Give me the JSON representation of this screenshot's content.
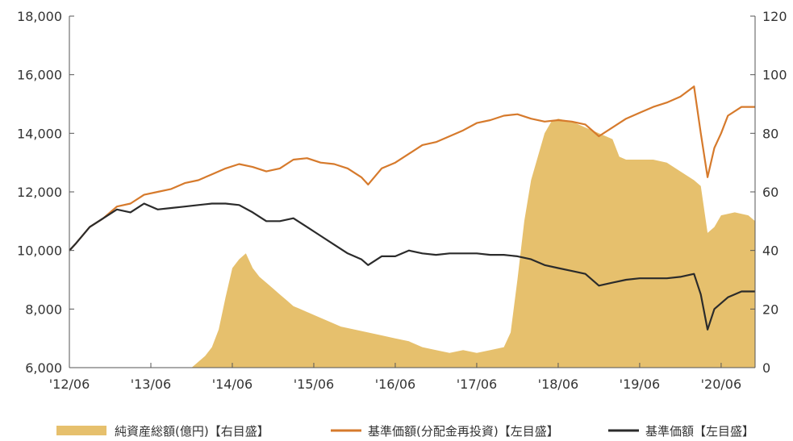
{
  "chart_data": {
    "type": "area+line",
    "x_tick_labels": [
      "'12/06",
      "'13/06",
      "'14/06",
      "'15/06",
      "'16/06",
      "'17/06",
      "'18/06",
      "'19/06",
      "'20/06"
    ],
    "x_tick_dates": [
      "2012-06",
      "2013-06",
      "2014-06",
      "2015-06",
      "2016-06",
      "2017-06",
      "2018-06",
      "2019-06",
      "2020-06"
    ],
    "x_range": [
      "2012-06",
      "2020-11"
    ],
    "y_left": {
      "range": [
        6000,
        18000
      ],
      "ticks": [
        6000,
        8000,
        10000,
        12000,
        14000,
        16000,
        18000
      ],
      "tick_labels": [
        "6,000",
        "8,000",
        "10,000",
        "12,000",
        "14,000",
        "16,000",
        "18,000"
      ]
    },
    "y_right": {
      "range": [
        0,
        120
      ],
      "ticks": [
        0,
        20,
        40,
        60,
        80,
        100,
        120
      ],
      "tick_labels": [
        "0",
        "20",
        "40",
        "60",
        "80",
        "100",
        "120"
      ]
    },
    "grid": false,
    "legend_position": "bottom",
    "colors": {
      "area": "#e6c06d",
      "line_reinvested": "#d67a2c",
      "line_nav": "#2b2b2b",
      "axis": "#555555"
    },
    "series": [
      {
        "name": "純資産総額(億円)【右目盛】",
        "kind": "area",
        "axis": "right",
        "points": [
          [
            "2013-12",
            0
          ],
          [
            "2014-01",
            2
          ],
          [
            "2014-02",
            4
          ],
          [
            "2014-03",
            7
          ],
          [
            "2014-04",
            13
          ],
          [
            "2014-05",
            24
          ],
          [
            "2014-06",
            34
          ],
          [
            "2014-07",
            37
          ],
          [
            "2014-08",
            39
          ],
          [
            "2014-09",
            34
          ],
          [
            "2014-10",
            31
          ],
          [
            "2014-11",
            29
          ],
          [
            "2014-12",
            27
          ],
          [
            "2015-01",
            25
          ],
          [
            "2015-02",
            23
          ],
          [
            "2015-03",
            21
          ],
          [
            "2015-04",
            20
          ],
          [
            "2015-06",
            18
          ],
          [
            "2015-08",
            16
          ],
          [
            "2015-10",
            14
          ],
          [
            "2015-12",
            13
          ],
          [
            "2016-02",
            12
          ],
          [
            "2016-04",
            11
          ],
          [
            "2016-06",
            10
          ],
          [
            "2016-08",
            9
          ],
          [
            "2016-10",
            7
          ],
          [
            "2016-12",
            6
          ],
          [
            "2017-02",
            5
          ],
          [
            "2017-04",
            6
          ],
          [
            "2017-06",
            5
          ],
          [
            "2017-08",
            6
          ],
          [
            "2017-10",
            7
          ],
          [
            "2017-11",
            12
          ],
          [
            "2017-12",
            30
          ],
          [
            "2018-01",
            50
          ],
          [
            "2018-02",
            64
          ],
          [
            "2018-03",
            72
          ],
          [
            "2018-04",
            80
          ],
          [
            "2018-05",
            84
          ],
          [
            "2018-06",
            85
          ],
          [
            "2018-08",
            84
          ],
          [
            "2018-10",
            82
          ],
          [
            "2018-12",
            80
          ],
          [
            "2019-02",
            78
          ],
          [
            "2019-03",
            72
          ],
          [
            "2019-04",
            71
          ],
          [
            "2019-06",
            71
          ],
          [
            "2019-08",
            71
          ],
          [
            "2019-10",
            70
          ],
          [
            "2019-12",
            67
          ],
          [
            "2020-02",
            64
          ],
          [
            "2020-03",
            62
          ],
          [
            "2020-04",
            46
          ],
          [
            "2020-05",
            48
          ],
          [
            "2020-06",
            52
          ],
          [
            "2020-08",
            53
          ],
          [
            "2020-10",
            52
          ],
          [
            "2020-11",
            50
          ]
        ]
      },
      {
        "name": "基準価額(分配金再投資)【左目盛】",
        "kind": "line",
        "axis": "left",
        "points": [
          [
            "2012-06",
            10000
          ],
          [
            "2012-07",
            10250
          ],
          [
            "2012-09",
            10800
          ],
          [
            "2012-11",
            11100
          ],
          [
            "2013-01",
            11500
          ],
          [
            "2013-03",
            11600
          ],
          [
            "2013-05",
            11900
          ],
          [
            "2013-07",
            12000
          ],
          [
            "2013-09",
            12100
          ],
          [
            "2013-11",
            12300
          ],
          [
            "2014-01",
            12400
          ],
          [
            "2014-03",
            12600
          ],
          [
            "2014-05",
            12800
          ],
          [
            "2014-07",
            12950
          ],
          [
            "2014-09",
            12850
          ],
          [
            "2014-11",
            12700
          ],
          [
            "2015-01",
            12800
          ],
          [
            "2015-03",
            13100
          ],
          [
            "2015-05",
            13150
          ],
          [
            "2015-07",
            13000
          ],
          [
            "2015-09",
            12950
          ],
          [
            "2015-11",
            12800
          ],
          [
            "2016-01",
            12500
          ],
          [
            "2016-02",
            12250
          ],
          [
            "2016-04",
            12800
          ],
          [
            "2016-06",
            13000
          ],
          [
            "2016-08",
            13300
          ],
          [
            "2016-10",
            13600
          ],
          [
            "2016-12",
            13700
          ],
          [
            "2017-02",
            13900
          ],
          [
            "2017-04",
            14100
          ],
          [
            "2017-06",
            14350
          ],
          [
            "2017-08",
            14450
          ],
          [
            "2017-10",
            14600
          ],
          [
            "2017-12",
            14650
          ],
          [
            "2018-02",
            14500
          ],
          [
            "2018-04",
            14400
          ],
          [
            "2018-06",
            14450
          ],
          [
            "2018-08",
            14400
          ],
          [
            "2018-10",
            14300
          ],
          [
            "2018-12",
            13900
          ],
          [
            "2019-02",
            14200
          ],
          [
            "2019-04",
            14500
          ],
          [
            "2019-06",
            14700
          ],
          [
            "2019-08",
            14900
          ],
          [
            "2019-10",
            15050
          ],
          [
            "2019-12",
            15250
          ],
          [
            "2020-02",
            15600
          ],
          [
            "2020-03",
            14000
          ],
          [
            "2020-04",
            12500
          ],
          [
            "2020-05",
            13500
          ],
          [
            "2020-06",
            14000
          ],
          [
            "2020-07",
            14600
          ],
          [
            "2020-09",
            14900
          ],
          [
            "2020-11",
            14900
          ]
        ]
      },
      {
        "name": "基準価額【左目盛】",
        "kind": "line",
        "axis": "left",
        "points": [
          [
            "2012-06",
            10000
          ],
          [
            "2012-07",
            10250
          ],
          [
            "2012-09",
            10800
          ],
          [
            "2012-11",
            11100
          ],
          [
            "2013-01",
            11400
          ],
          [
            "2013-03",
            11300
          ],
          [
            "2013-05",
            11600
          ],
          [
            "2013-07",
            11400
          ],
          [
            "2013-09",
            11450
          ],
          [
            "2013-11",
            11500
          ],
          [
            "2014-01",
            11550
          ],
          [
            "2014-03",
            11600
          ],
          [
            "2014-05",
            11600
          ],
          [
            "2014-07",
            11550
          ],
          [
            "2014-09",
            11300
          ],
          [
            "2014-11",
            11000
          ],
          [
            "2015-01",
            11000
          ],
          [
            "2015-03",
            11100
          ],
          [
            "2015-05",
            10800
          ],
          [
            "2015-07",
            10500
          ],
          [
            "2015-09",
            10200
          ],
          [
            "2015-11",
            9900
          ],
          [
            "2016-01",
            9700
          ],
          [
            "2016-02",
            9500
          ],
          [
            "2016-04",
            9800
          ],
          [
            "2016-06",
            9800
          ],
          [
            "2016-08",
            10000
          ],
          [
            "2016-10",
            9900
          ],
          [
            "2016-12",
            9850
          ],
          [
            "2017-02",
            9900
          ],
          [
            "2017-04",
            9900
          ],
          [
            "2017-06",
            9900
          ],
          [
            "2017-08",
            9850
          ],
          [
            "2017-10",
            9850
          ],
          [
            "2017-12",
            9800
          ],
          [
            "2018-02",
            9700
          ],
          [
            "2018-04",
            9500
          ],
          [
            "2018-06",
            9400
          ],
          [
            "2018-08",
            9300
          ],
          [
            "2018-10",
            9200
          ],
          [
            "2018-12",
            8800
          ],
          [
            "2019-02",
            8900
          ],
          [
            "2019-04",
            9000
          ],
          [
            "2019-06",
            9050
          ],
          [
            "2019-08",
            9050
          ],
          [
            "2019-10",
            9050
          ],
          [
            "2019-12",
            9100
          ],
          [
            "2020-02",
            9200
          ],
          [
            "2020-03",
            8500
          ],
          [
            "2020-04",
            7300
          ],
          [
            "2020-05",
            8000
          ],
          [
            "2020-06",
            8200
          ],
          [
            "2020-07",
            8400
          ],
          [
            "2020-09",
            8600
          ],
          [
            "2020-11",
            8600
          ]
        ]
      }
    ]
  }
}
